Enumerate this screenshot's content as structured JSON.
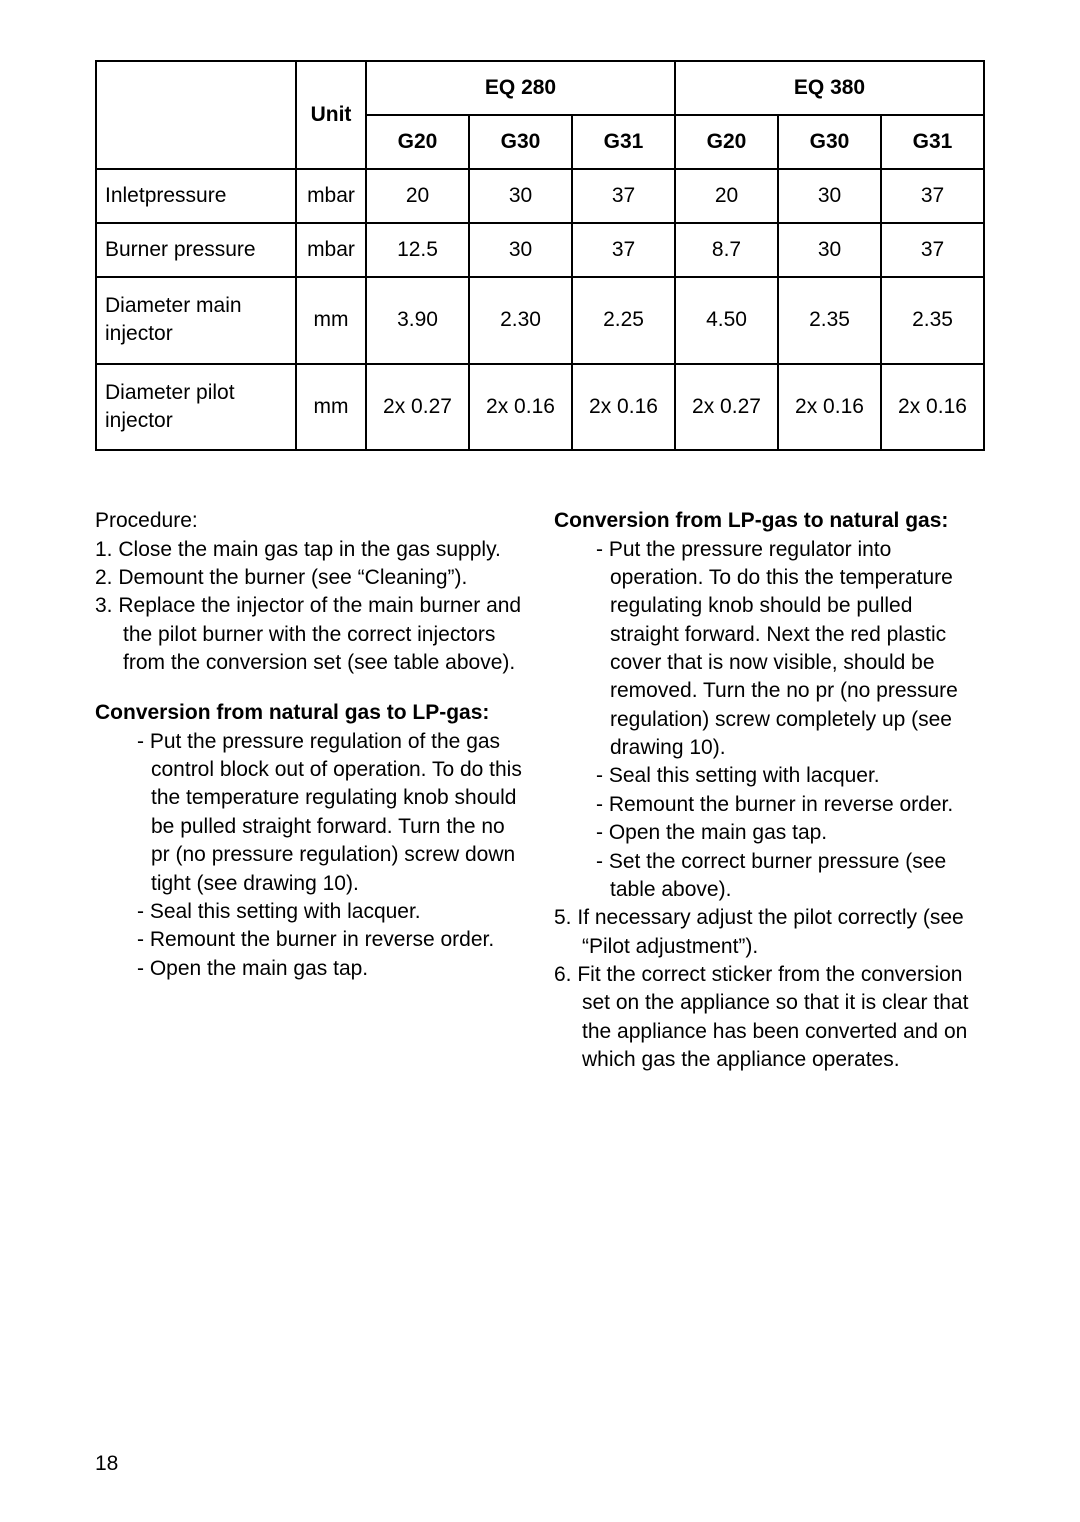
{
  "table": {
    "unit_header": "Unit",
    "model_headers": [
      "EQ 280",
      "EQ 380"
    ],
    "gas_headers": [
      "G20",
      "G30",
      "G31",
      "G20",
      "G30",
      "G31"
    ],
    "rows": [
      {
        "label": "Inletpressure",
        "unit": "mbar",
        "vals": [
          "20",
          "30",
          "37",
          "20",
          "30",
          "37"
        ]
      },
      {
        "label": "Burner  pressure",
        "unit": "mbar",
        "vals": [
          "12.5",
          "30",
          "37",
          "8.7",
          "30",
          "37"
        ]
      },
      {
        "label": "Diameter main injector",
        "unit": "mm",
        "vals": [
          "3.90",
          "2.30",
          "2.25",
          "4.50",
          "2.35",
          "2.35"
        ]
      },
      {
        "label": "Diameter pilot injector",
        "unit": "mm",
        "vals": [
          "2x 0.27",
          "2x 0.16",
          "2x 0.16",
          "2x 0.27",
          "2x 0.16",
          "2x 0.16"
        ]
      }
    ]
  },
  "left": {
    "procedure_label": "Procedure:",
    "steps": [
      "Close the main gas tap in the gas supply.",
      "Demount the burner (see “Cleaning”).",
      "Replace the injector of the main burner and the pilot burner with the correct injectors from the conversion set (see table above)."
    ],
    "conv_head": "Conversion from natural gas to LP-gas:",
    "conv_items": [
      "Put the pressure regulation of the gas control block out of operation. To do this the temperature regulating knob should be pulled straight forward. Turn the  no pr  (no pressure regulation) screw down tight (see drawing 10).",
      "Seal this setting with lacquer.",
      "Remount the burner in reverse order.",
      "Open the main gas tap."
    ]
  },
  "right": {
    "conv_head": "Conversion from LP-gas to natural gas",
    "conv_head_colon": ":",
    "conv_items": [
      "Put the pressure regulator into operation. To do this the temperature regulating knob should be pulled straight forward. Next the red plastic cover that is now visible, should be removed. Turn the  no pr  (no pressure regulation) screw completely up (see drawing 10).",
      "Seal this setting with lacquer.",
      "Remount the burner in reverse order.",
      "Open the main gas tap.",
      "Set the correct burner pressure (see table above)."
    ],
    "step5": "If necessary adjust the pilot correctly (see “Pilot adjustment”).",
    "step6": "Fit the correct sticker from the conversion set on the appliance so that it is clear that the appliance has been converted and on which gas the appliance operates."
  },
  "page_number": "18"
}
